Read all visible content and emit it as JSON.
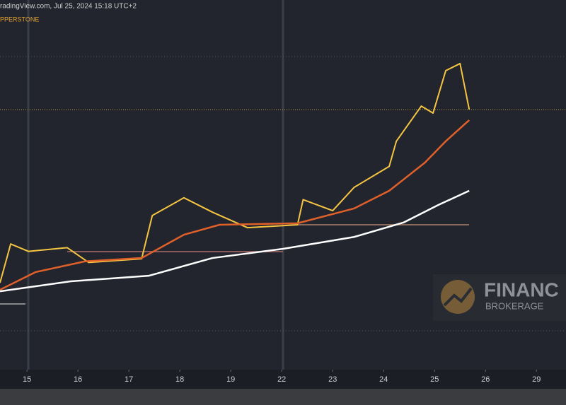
{
  "header": {
    "source": "radingView.com, Jul 25, 2024 15:18 UTC+2",
    "symbol": "PPERSTONE"
  },
  "watermark": {
    "name": "FINANC",
    "tagline": "BROKERAGE"
  },
  "chart_data": {
    "type": "line",
    "xlim": [
      -0.53,
      10.58
    ],
    "ylim": [
      0,
      100
    ],
    "xticks": [
      {
        "value": 0,
        "label": "15"
      },
      {
        "value": 1,
        "label": "16"
      },
      {
        "value": 2,
        "label": "17"
      },
      {
        "value": 3,
        "label": "18"
      },
      {
        "value": 4,
        "label": "19"
      },
      {
        "value": 5,
        "label": "22"
      },
      {
        "value": 6,
        "label": "23"
      },
      {
        "value": 7,
        "label": "24"
      },
      {
        "value": 8,
        "label": "25"
      },
      {
        "value": 9,
        "label": "26"
      },
      {
        "value": 10,
        "label": "29"
      }
    ],
    "series": [
      {
        "color": "#f5c542",
        "x": [
          -0.53,
          -0.32,
          0.03,
          0.79,
          1.21,
          2.25,
          2.46,
          3.08,
          3.64,
          4.33,
          5.31,
          5.42,
          6.0,
          6.42,
          7.11,
          7.25,
          7.74,
          7.97,
          8.22,
          8.5,
          8.68
        ],
        "values": [
          23.5,
          34,
          32,
          33,
          29,
          30,
          41.7,
          46.5,
          42.6,
          38.4,
          39.2,
          46,
          43,
          49.3,
          55,
          61.8,
          71.3,
          69.4,
          80.9,
          82.8,
          70.4
        ]
      },
      {
        "color": "#e0602a",
        "x": [
          -0.53,
          0.17,
          1.14,
          2.25,
          3.08,
          3.78,
          5.31,
          6.42,
          7.11,
          7.81,
          8.22,
          8.68
        ],
        "values": [
          21.6,
          26.4,
          29.3,
          30.2,
          36.5,
          39.2,
          39.6,
          43.6,
          48.4,
          56,
          61.8,
          67.5
        ]
      },
      {
        "color": "#ffffff",
        "x": [
          -0.53,
          0.86,
          2.39,
          3.64,
          5.03,
          6.42,
          7.39,
          8.08,
          8.68
        ],
        "values": [
          21.2,
          23.9,
          25.4,
          30.2,
          32.7,
          35.9,
          39.8,
          44.6,
          48.4
        ]
      }
    ]
  }
}
